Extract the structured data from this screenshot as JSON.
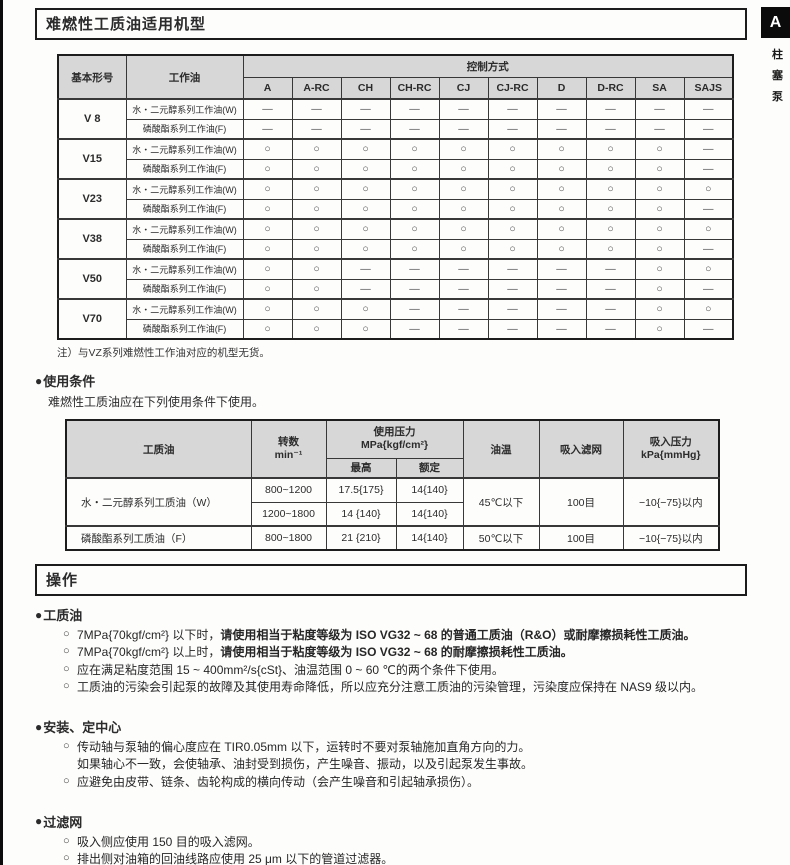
{
  "page": {
    "title": "难燃性工质油适用机型",
    "side_tab": {
      "letter": "A",
      "chars": [
        "柱",
        "塞",
        "泵"
      ]
    }
  },
  "symbols": {
    "section_bullet": "●",
    "item_bullet": "○",
    "applicable": "○",
    "none": "—"
  },
  "table1": {
    "header": {
      "col1": "基本形号",
      "col2": "工作油",
      "group": "控制方式",
      "controls": [
        "A",
        "A-RC",
        "CH",
        "CH-RC",
        "CJ",
        "CJ-RC",
        "D",
        "D-RC",
        "SA",
        "SAJS"
      ]
    },
    "oil_w": "水・二元醇系列工作油(W)",
    "oil_f": "磷酸酯系列工作油(F)",
    "models": [
      {
        "model": "V 8",
        "w": [
          "—",
          "—",
          "—",
          "—",
          "—",
          "—",
          "—",
          "—",
          "—",
          "—"
        ],
        "f": [
          "—",
          "—",
          "—",
          "—",
          "—",
          "—",
          "—",
          "—",
          "—",
          "—"
        ]
      },
      {
        "model": "V15",
        "w": [
          "○",
          "○",
          "○",
          "○",
          "○",
          "○",
          "○",
          "○",
          "○",
          "—"
        ],
        "f": [
          "○",
          "○",
          "○",
          "○",
          "○",
          "○",
          "○",
          "○",
          "○",
          "—"
        ]
      },
      {
        "model": "V23",
        "w": [
          "○",
          "○",
          "○",
          "○",
          "○",
          "○",
          "○",
          "○",
          "○",
          "○"
        ],
        "f": [
          "○",
          "○",
          "○",
          "○",
          "○",
          "○",
          "○",
          "○",
          "○",
          "—"
        ]
      },
      {
        "model": "V38",
        "w": [
          "○",
          "○",
          "○",
          "○",
          "○",
          "○",
          "○",
          "○",
          "○",
          "○"
        ],
        "f": [
          "○",
          "○",
          "○",
          "○",
          "○",
          "○",
          "○",
          "○",
          "○",
          "—"
        ]
      },
      {
        "model": "V50",
        "w": [
          "○",
          "○",
          "—",
          "—",
          "—",
          "—",
          "—",
          "—",
          "○",
          "○"
        ],
        "f": [
          "○",
          "○",
          "—",
          "—",
          "—",
          "—",
          "—",
          "—",
          "○",
          "—"
        ]
      },
      {
        "model": "V70",
        "w": [
          "○",
          "○",
          "○",
          "—",
          "—",
          "—",
          "—",
          "—",
          "○",
          "○"
        ],
        "f": [
          "○",
          "○",
          "○",
          "—",
          "—",
          "—",
          "—",
          "—",
          "○",
          "—"
        ]
      }
    ]
  },
  "note": "注）与VZ系列难燃性工作油对应的机型无货。",
  "usage": {
    "heading": "使用条件",
    "intro": "难燃性工质油应在下列使用条件下使用。",
    "table": {
      "headers": {
        "fluid": "工质油",
        "speed": "转数",
        "speed_unit": "min⁻¹",
        "pressure": "使用压力",
        "pressure_unit": "MPa{kgf/cm²}",
        "max": "最高",
        "rated": "额定",
        "temp": "油温",
        "strainer": "吸入滤网",
        "suction": "吸入压力",
        "suction_unit": "kPa{mmHg}"
      },
      "rows": [
        {
          "fluid": "水・二元醇系列工质油（W）",
          "subs": [
            [
              "800~1200",
              "17.5{175}",
              "14{140}"
            ],
            [
              "1200~1800",
              "14 {140}",
              "14{140}"
            ]
          ],
          "temp": "45℃以下",
          "strainer": "100目",
          "suction": "−10{−75}以内"
        },
        {
          "fluid": "磷酸酯系列工质油（F）",
          "subs": [
            [
              "800~1800",
              "21 {210}",
              "14{140}"
            ]
          ],
          "temp": "50℃以下",
          "strainer": "100目",
          "suction": "−10{−75}以内"
        }
      ]
    }
  },
  "operation": {
    "box_title": "操作",
    "sections": [
      {
        "heading": "工质油",
        "items": [
          {
            "runs": [
              {
                "text": "7MPa{70kgf/cm²} 以下时，",
                "bold": false
              },
              {
                "text": "请使用相当于粘度等级为 ISO VG32 ~ 68 的普通工质油（R&O）或耐摩擦损耗性工质油。",
                "bold": true
              }
            ]
          },
          {
            "runs": [
              {
                "text": "7MPa{70kgf/cm²} 以上时，",
                "bold": false
              },
              {
                "text": "请使用相当于粘度等级为 ISO VG32 ~ 68 的耐摩擦损耗性工质油。",
                "bold": true
              }
            ]
          },
          {
            "runs": [
              {
                "text": "应在满足粘度范围 15 ~ 400mm²/s{cSt}、油温范围 0 ~ 60 ℃的两个条件下使用。",
                "bold": false
              }
            ]
          },
          {
            "runs": [
              {
                "text": "工质油的污染会引起泵的故障及其使用寿命降低，所以应充分注意工质油的污染管理，污染度应保持在 NAS9 级以内。",
                "bold": false
              }
            ]
          }
        ]
      },
      {
        "heading": "安装、定中心",
        "items": [
          {
            "runs": [
              {
                "text": "传动轴与泵轴的偏心度应在 TIR0.05mm 以下，运转时不要对泵轴施加直角方向的力。\n如果轴心不一致，会使轴承、油封受到损伤，产生噪音、振动，以及引起泵发生事故。",
                "bold": false
              }
            ]
          },
          {
            "runs": [
              {
                "text": "应避免由皮带、链条、齿轮构成的横向传动（会产生噪音和引起轴承损伤）。",
                "bold": false
              }
            ]
          }
        ]
      },
      {
        "heading": "过滤网",
        "items": [
          {
            "runs": [
              {
                "text": "吸入侧应使用 150 目的吸入滤网。",
                "bold": false
              }
            ]
          },
          {
            "runs": [
              {
                "text": "排出侧对油箱的回油线路应使用 25 μm 以下的管道过滤器。",
                "bold": false
              }
            ]
          }
        ]
      }
    ]
  }
}
